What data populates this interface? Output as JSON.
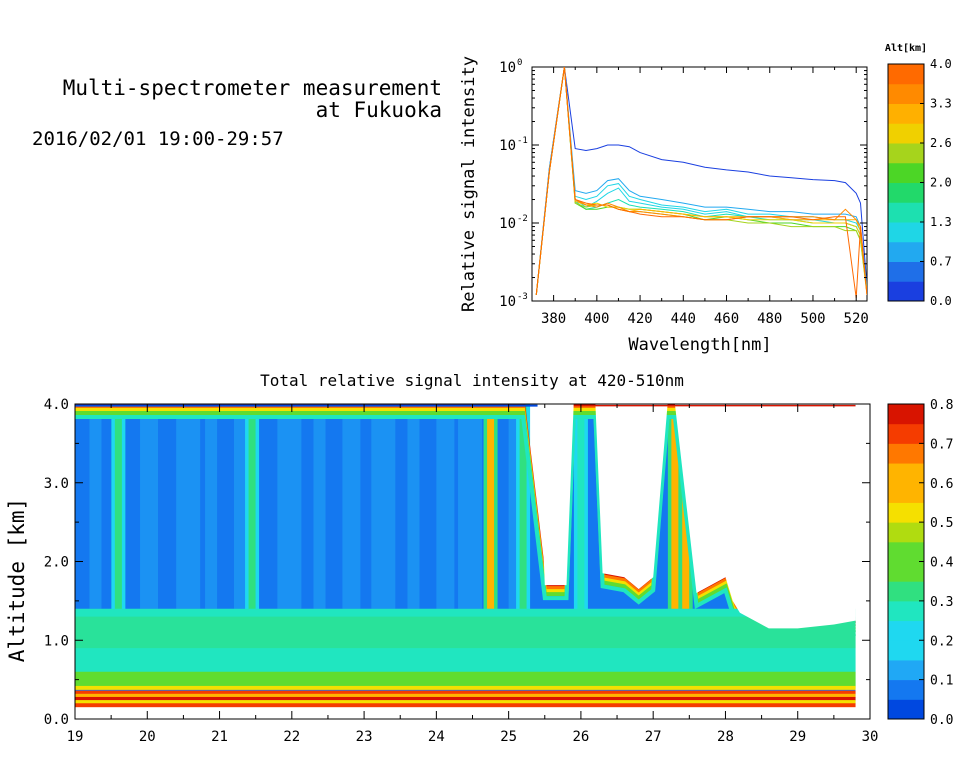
{
  "header": {
    "title_line1": "Multi-spectrometer measurement",
    "title_line2": "at Fukuoka",
    "date_range": "2016/02/01 19:00-29:57"
  },
  "colors": {
    "spectrum_palette": [
      "#1a3fe0",
      "#1f6fe8",
      "#22a9f0",
      "#1fd6e6",
      "#1de0b0",
      "#22d96a",
      "#4cd626",
      "#a6d41c",
      "#f0d000",
      "#ffb000",
      "#ff8a00",
      "#ff6a00"
    ],
    "intensity_palette": [
      "#0048e0",
      "#1478f0",
      "#20a8f5",
      "#1fd8f0",
      "#20e6c0",
      "#30e080",
      "#60dc30",
      "#b0dc10",
      "#f5e000",
      "#ffb400",
      "#ff7800",
      "#f53c00",
      "#d81400"
    ]
  },
  "chart_data": [
    {
      "type": "line",
      "title": "",
      "xlabel": "Wavelength[nm]",
      "ylabel": "Relative signal intensity",
      "xlim": [
        370,
        525
      ],
      "ylim": [
        0.001,
        1
      ],
      "log_y": true,
      "x_ticks": [
        "380",
        "400",
        "420",
        "440",
        "460",
        "480",
        "500",
        "520"
      ],
      "y_ticks": [
        "10^0",
        "10^-1",
        "10^-2",
        "10^-3"
      ],
      "colorbar": {
        "label": "Alt[km]",
        "ticks": [
          "4.0",
          "3.3",
          "2.6",
          "2.0",
          "1.3",
          "0.7",
          "0.0"
        ],
        "range": [
          0.0,
          4.0
        ]
      },
      "x": [
        372,
        378,
        385,
        390,
        395,
        400,
        405,
        410,
        415,
        420,
        430,
        440,
        450,
        460,
        470,
        480,
        490,
        500,
        510,
        515,
        520,
        522,
        525
      ],
      "series": [
        {
          "altitude": 0.3,
          "values": [
            0.0012,
            0.05,
            1.0,
            0.09,
            0.085,
            0.09,
            0.1,
            0.1,
            0.095,
            0.08,
            0.065,
            0.06,
            0.052,
            0.048,
            0.045,
            0.04,
            0.038,
            0.036,
            0.035,
            0.033,
            0.024,
            0.018,
            0.0015
          ]
        },
        {
          "altitude": 0.7,
          "values": [
            0.0012,
            0.05,
            1.0,
            0.026,
            0.024,
            0.026,
            0.035,
            0.037,
            0.026,
            0.022,
            0.02,
            0.018,
            0.016,
            0.016,
            0.015,
            0.014,
            0.014,
            0.013,
            0.013,
            0.013,
            0.012,
            0.009,
            0.0014
          ]
        },
        {
          "altitude": 1.0,
          "values": [
            0.0012,
            0.045,
            1.0,
            0.022,
            0.02,
            0.022,
            0.03,
            0.032,
            0.022,
            0.02,
            0.017,
            0.016,
            0.014,
            0.015,
            0.013,
            0.013,
            0.012,
            0.012,
            0.011,
            0.011,
            0.01,
            0.008,
            0.0014
          ]
        },
        {
          "altitude": 1.3,
          "values": [
            0.0012,
            0.045,
            1.0,
            0.02,
            0.016,
            0.019,
            0.024,
            0.028,
            0.019,
            0.018,
            0.016,
            0.015,
            0.013,
            0.014,
            0.012,
            0.012,
            0.011,
            0.011,
            0.01,
            0.01,
            0.009,
            0.007,
            0.0013
          ]
        },
        {
          "altitude": 1.6,
          "values": [
            0.0012,
            0.045,
            1.0,
            0.019,
            0.015,
            0.016,
            0.018,
            0.02,
            0.017,
            0.016,
            0.015,
            0.014,
            0.012,
            0.013,
            0.012,
            0.011,
            0.011,
            0.01,
            0.01,
            0.01,
            0.009,
            0.007,
            0.0013
          ]
        },
        {
          "altitude": 2.0,
          "values": [
            0.0012,
            0.045,
            1.0,
            0.018,
            0.015,
            0.015,
            0.016,
            0.016,
            0.015,
            0.015,
            0.014,
            0.013,
            0.011,
            0.012,
            0.011,
            0.01,
            0.01,
            0.009,
            0.009,
            0.009,
            0.008,
            0.006,
            0.0013
          ]
        },
        {
          "altitude": 2.4,
          "values": [
            0.0012,
            0.045,
            1.0,
            0.018,
            0.016,
            0.017,
            0.017,
            0.015,
            0.014,
            0.014,
            0.013,
            0.012,
            0.011,
            0.011,
            0.01,
            0.01,
            0.009,
            0.009,
            0.009,
            0.008,
            0.008,
            0.006,
            0.0012
          ]
        },
        {
          "altitude": 2.8,
          "values": [
            0.0012,
            0.045,
            1.0,
            0.02,
            0.017,
            0.018,
            0.016,
            0.016,
            0.015,
            0.015,
            0.014,
            0.013,
            0.012,
            0.012,
            0.011,
            0.011,
            0.011,
            0.01,
            0.01,
            0.01,
            0.009,
            0.007,
            0.0013
          ]
        },
        {
          "altitude": 3.2,
          "values": [
            0.0012,
            0.045,
            1.0,
            0.019,
            0.017,
            0.017,
            0.017,
            0.015,
            0.014,
            0.015,
            0.014,
            0.013,
            0.012,
            0.012,
            0.012,
            0.012,
            0.011,
            0.011,
            0.011,
            0.011,
            0.011,
            0.008,
            0.0012
          ]
        },
        {
          "altitude": 3.6,
          "values": [
            0.0012,
            0.045,
            1.0,
            0.02,
            0.017,
            0.016,
            0.018,
            0.016,
            0.014,
            0.014,
            0.013,
            0.012,
            0.011,
            0.011,
            0.012,
            0.012,
            0.012,
            0.012,
            0.011,
            0.015,
            0.011,
            0.009,
            0.0012
          ]
        },
        {
          "altitude": 3.9,
          "values": [
            0.0012,
            0.045,
            1.0,
            0.02,
            0.018,
            0.017,
            0.017,
            0.015,
            0.014,
            0.013,
            0.012,
            0.012,
            0.011,
            0.011,
            0.012,
            0.012,
            0.012,
            0.011,
            0.012,
            0.012,
            0.0011,
            0.009,
            0.0012
          ]
        }
      ]
    },
    {
      "type": "heatmap",
      "title": "Total relative signal intensity at 420-510nm",
      "xlabel": "",
      "ylabel": "Altitude [km]",
      "xlim": [
        19,
        30
      ],
      "ylim": [
        0.0,
        4.0
      ],
      "x_ticks": [
        "19",
        "20",
        "21",
        "22",
        "23",
        "24",
        "25",
        "26",
        "27",
        "28",
        "29",
        "30"
      ],
      "y_ticks": [
        "4.0",
        "3.0",
        "2.0",
        "1.0",
        "0.0"
      ],
      "colorbar": {
        "label": "",
        "ticks": [
          "0.8",
          "0.7",
          "0.6",
          "0.5",
          "0.4",
          "0.3",
          "0.2",
          "0.1",
          "0.0"
        ],
        "range": [
          0.0,
          0.8
        ]
      },
      "data_end_x": 29.8,
      "cloud_base_profile": {
        "x": [
          19,
          25.2,
          25.5,
          25.6,
          25.8,
          25.9,
          26.2,
          26.3,
          26.6,
          26.8,
          27.0,
          27.2,
          27.3,
          27.6,
          27.8,
          28.0,
          28.1,
          28.2,
          28.6,
          29.0,
          29.5,
          29.8
        ],
        "y": [
          4.0,
          4.0,
          1.7,
          1.7,
          1.7,
          4.0,
          4.0,
          1.85,
          1.8,
          1.65,
          1.8,
          4.0,
          4.0,
          1.6,
          1.7,
          1.8,
          1.5,
          1.35,
          1.15,
          1.15,
          1.2,
          1.25
        ]
      },
      "aerosol_layer_top_km": 1.4,
      "surface_layer_km": [
        0.15,
        0.35
      ],
      "bright_columns": [
        {
          "x": 19.6,
          "value": 0.35
        },
        {
          "x": 21.45,
          "value": 0.32
        },
        {
          "x": 24.75,
          "value": 0.6
        },
        {
          "x": 25.2,
          "value": 0.35
        },
        {
          "x": 26.0,
          "value": 0.3
        },
        {
          "x": 27.3,
          "value": 0.6
        },
        {
          "x": 27.45,
          "value": 0.6
        }
      ]
    }
  ]
}
